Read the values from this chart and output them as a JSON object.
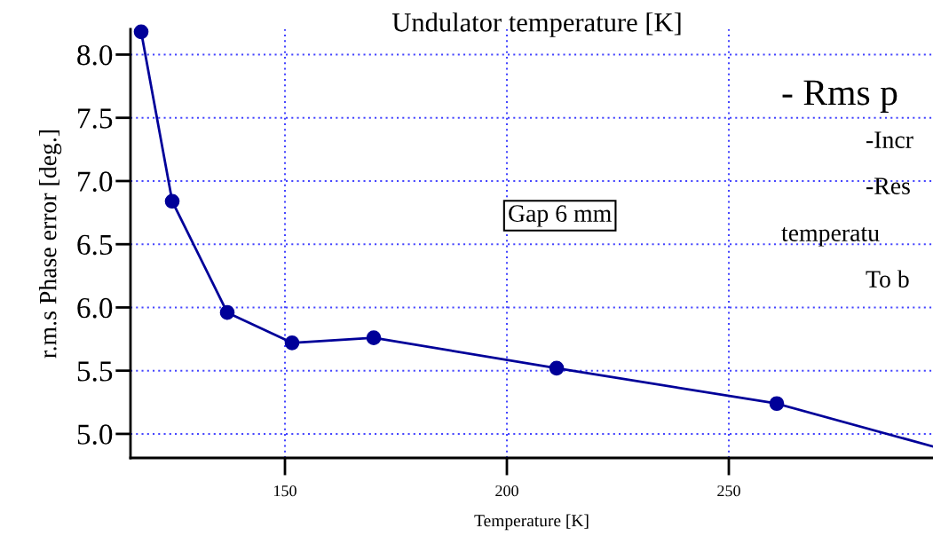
{
  "chart_data": {
    "type": "line",
    "title": "Undulator temperature [K]",
    "xlabel": "Temperature [K]",
    "ylabel": "r.m.s Phase error [deg.]",
    "series": [
      {
        "color": "#000099",
        "marker": "circle",
        "x": [
          117.6,
          124.6,
          137.0,
          151.6,
          170.0,
          211.2,
          260.8
        ],
        "values": [
          8.18,
          6.84,
          5.96,
          5.72,
          5.76,
          5.52,
          5.24
        ]
      },
      {
        "color": "#000099",
        "marker": "none",
        "x": [
          260.8,
          296.0
        ],
        "values": [
          5.24,
          4.9
        ]
      }
    ],
    "xlim": [
      115.2,
      296.0
    ],
    "xticks": [
      150,
      200,
      250
    ],
    "ylim": [
      4.81,
      8.2
    ],
    "yticks": [
      {
        "value": 5,
        "label": "5.0"
      },
      {
        "value": 5.5,
        "label": "5.5"
      },
      {
        "value": 6,
        "label": "6.0"
      },
      {
        "value": 6.5,
        "label": "6.5"
      },
      {
        "value": 7,
        "label": "7.0"
      },
      {
        "value": 7.5,
        "label": "7.5"
      },
      {
        "value": 8,
        "label": "8.0"
      }
    ],
    "grid": true,
    "line_style": "solid",
    "annotations": [
      "Gap 6 mm",
      "- Rms p",
      "-Incr",
      "-Res",
      "temperatu",
      "To b"
    ]
  }
}
